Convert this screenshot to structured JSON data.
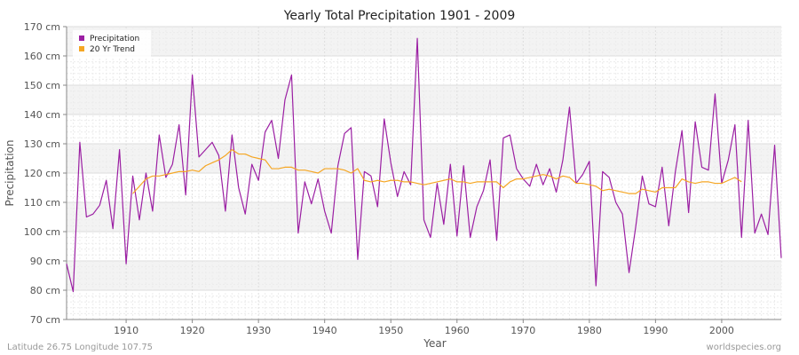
{
  "chart_data": {
    "type": "line",
    "title": "Yearly Total Precipitation 1901 - 2009",
    "xlabel": "Year",
    "ylabel": "Precipitation",
    "xlim": [
      1901,
      2009
    ],
    "ylim": [
      70,
      170
    ],
    "y_ticks": [
      70,
      80,
      90,
      100,
      110,
      120,
      130,
      140,
      150,
      160,
      170
    ],
    "y_tick_labels": [
      "70 cm",
      "80 cm",
      "90 cm",
      "100 cm",
      "110 cm",
      "120 cm",
      "130 cm",
      "140 cm",
      "150 cm",
      "160 cm",
      "170 cm"
    ],
    "x_ticks": [
      1910,
      1920,
      1930,
      1940,
      1950,
      1960,
      1970,
      1980,
      1990,
      2000
    ],
    "x_tick_labels": [
      "1910",
      "1920",
      "1930",
      "1940",
      "1950",
      "1960",
      "1970",
      "1980",
      "1990",
      "2000"
    ],
    "grid": true,
    "legend": {
      "placement": "top-left",
      "entries": [
        "Precipitation",
        "20 Yr Trend"
      ]
    },
    "series": [
      {
        "name": "Precipitation",
        "color": "#9b1fa3",
        "x_start": 1901,
        "values": [
          89,
          79.5,
          130.5,
          105,
          106,
          109,
          117.5,
          101,
          128,
          89,
          119,
          104,
          120,
          107,
          133,
          118.5,
          123,
          136.5,
          112.5,
          153.5,
          125.5,
          128,
          130.5,
          126,
          107,
          133,
          115,
          106,
          123,
          117.5,
          134,
          138,
          125,
          145,
          153.5,
          99.5,
          117,
          109.5,
          118,
          107,
          99.5,
          122.5,
          133.5,
          135.5,
          90.5,
          120.5,
          119,
          108.5,
          138.5,
          123.5,
          112,
          120.5,
          116,
          166,
          104,
          98,
          116.5,
          102.5,
          123,
          98.5,
          122.5,
          98,
          108.5,
          114,
          124.5,
          97,
          132,
          133,
          121.5,
          118,
          115.5,
          123,
          116,
          121.5,
          113.5,
          124.5,
          142.5,
          116.5,
          119.5,
          124,
          81.5,
          120.5,
          118.5,
          110,
          106,
          86,
          101.5,
          119,
          109.5,
          108.5,
          122,
          102,
          120.5,
          134.5,
          106.5,
          137.5,
          122,
          121,
          147,
          116.5,
          124.5,
          136.5,
          98,
          138,
          99.5,
          106,
          99,
          129.5,
          91
        ]
      },
      {
        "name": "20 Yr Trend",
        "color": "#f5a623",
        "x_start": 1911,
        "values": [
          113,
          115.5,
          118,
          119,
          119,
          119.5,
          120,
          120.5,
          120.5,
          121,
          120.5,
          122.5,
          123.5,
          124.5,
          126,
          128,
          126.5,
          126.5,
          125.5,
          125,
          124.5,
          121.5,
          121.5,
          122,
          122,
          121,
          121,
          120.5,
          120,
          121.5,
          121.5,
          121.5,
          121,
          120,
          121.5,
          117.5,
          117,
          117.5,
          117,
          117.5,
          117.5,
          117,
          117,
          116.5,
          116,
          116.5,
          117,
          117.5,
          118,
          117,
          117,
          116.5,
          117,
          117,
          117,
          117,
          115,
          117,
          118,
          118,
          118.5,
          119,
          119.5,
          119,
          118,
          119,
          118.5,
          116.5,
          116.5,
          116,
          115.5,
          114,
          114.5,
          114,
          113.5,
          113,
          113,
          114.5,
          114,
          113.5,
          115,
          115,
          115,
          118,
          117,
          116.5,
          117,
          117,
          116.5,
          116.5,
          117.5,
          118.5,
          117
        ]
      }
    ]
  },
  "footer": {
    "left": "Latitude 26.75 Longitude 107.75",
    "right": "worldspecies.org"
  }
}
